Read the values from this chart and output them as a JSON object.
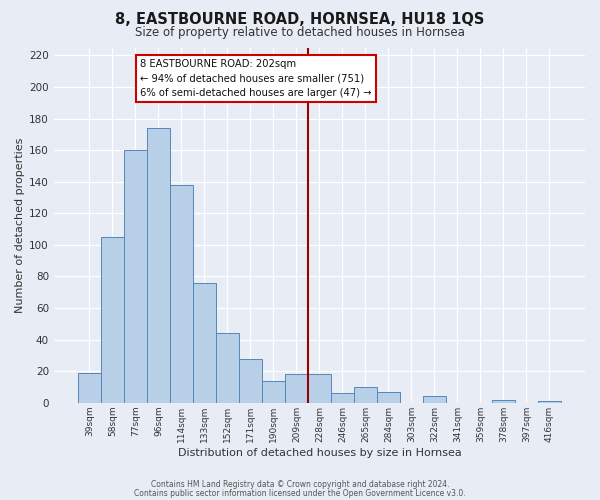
{
  "title": "8, EASTBOURNE ROAD, HORNSEA, HU18 1QS",
  "subtitle": "Size of property relative to detached houses in Hornsea",
  "xlabel": "Distribution of detached houses by size in Hornsea",
  "ylabel": "Number of detached properties",
  "bar_labels": [
    "39sqm",
    "58sqm",
    "77sqm",
    "96sqm",
    "114sqm",
    "133sqm",
    "152sqm",
    "171sqm",
    "190sqm",
    "209sqm",
    "228sqm",
    "246sqm",
    "265sqm",
    "284sqm",
    "303sqm",
    "322sqm",
    "341sqm",
    "359sqm",
    "378sqm",
    "397sqm",
    "416sqm"
  ],
  "bar_values": [
    19,
    105,
    160,
    174,
    138,
    76,
    44,
    28,
    14,
    18,
    18,
    6,
    10,
    7,
    0,
    4,
    0,
    0,
    2,
    0,
    1
  ],
  "bar_color": "#b8cfe8",
  "bar_edge_color": "#5585bb",
  "vline_x": 9.5,
  "vline_color": "#990000",
  "annotation_line1": "8 EASTBOURNE ROAD: 202sqm",
  "annotation_line2": "← 94% of detached houses are smaller (751)",
  "annotation_line3": "6% of semi-detached houses are larger (47) →",
  "annotation_box_edge": "#cc0000",
  "ylim": [
    0,
    225
  ],
  "yticks": [
    0,
    20,
    40,
    60,
    80,
    100,
    120,
    140,
    160,
    180,
    200,
    220
  ],
  "footer1": "Contains HM Land Registry data © Crown copyright and database right 2024.",
  "footer2": "Contains public sector information licensed under the Open Government Licence v3.0.",
  "bg_color": "#e8edf5",
  "plot_bg_color": "#e8edf5",
  "title_fontsize": 10.5,
  "subtitle_fontsize": 8.5
}
